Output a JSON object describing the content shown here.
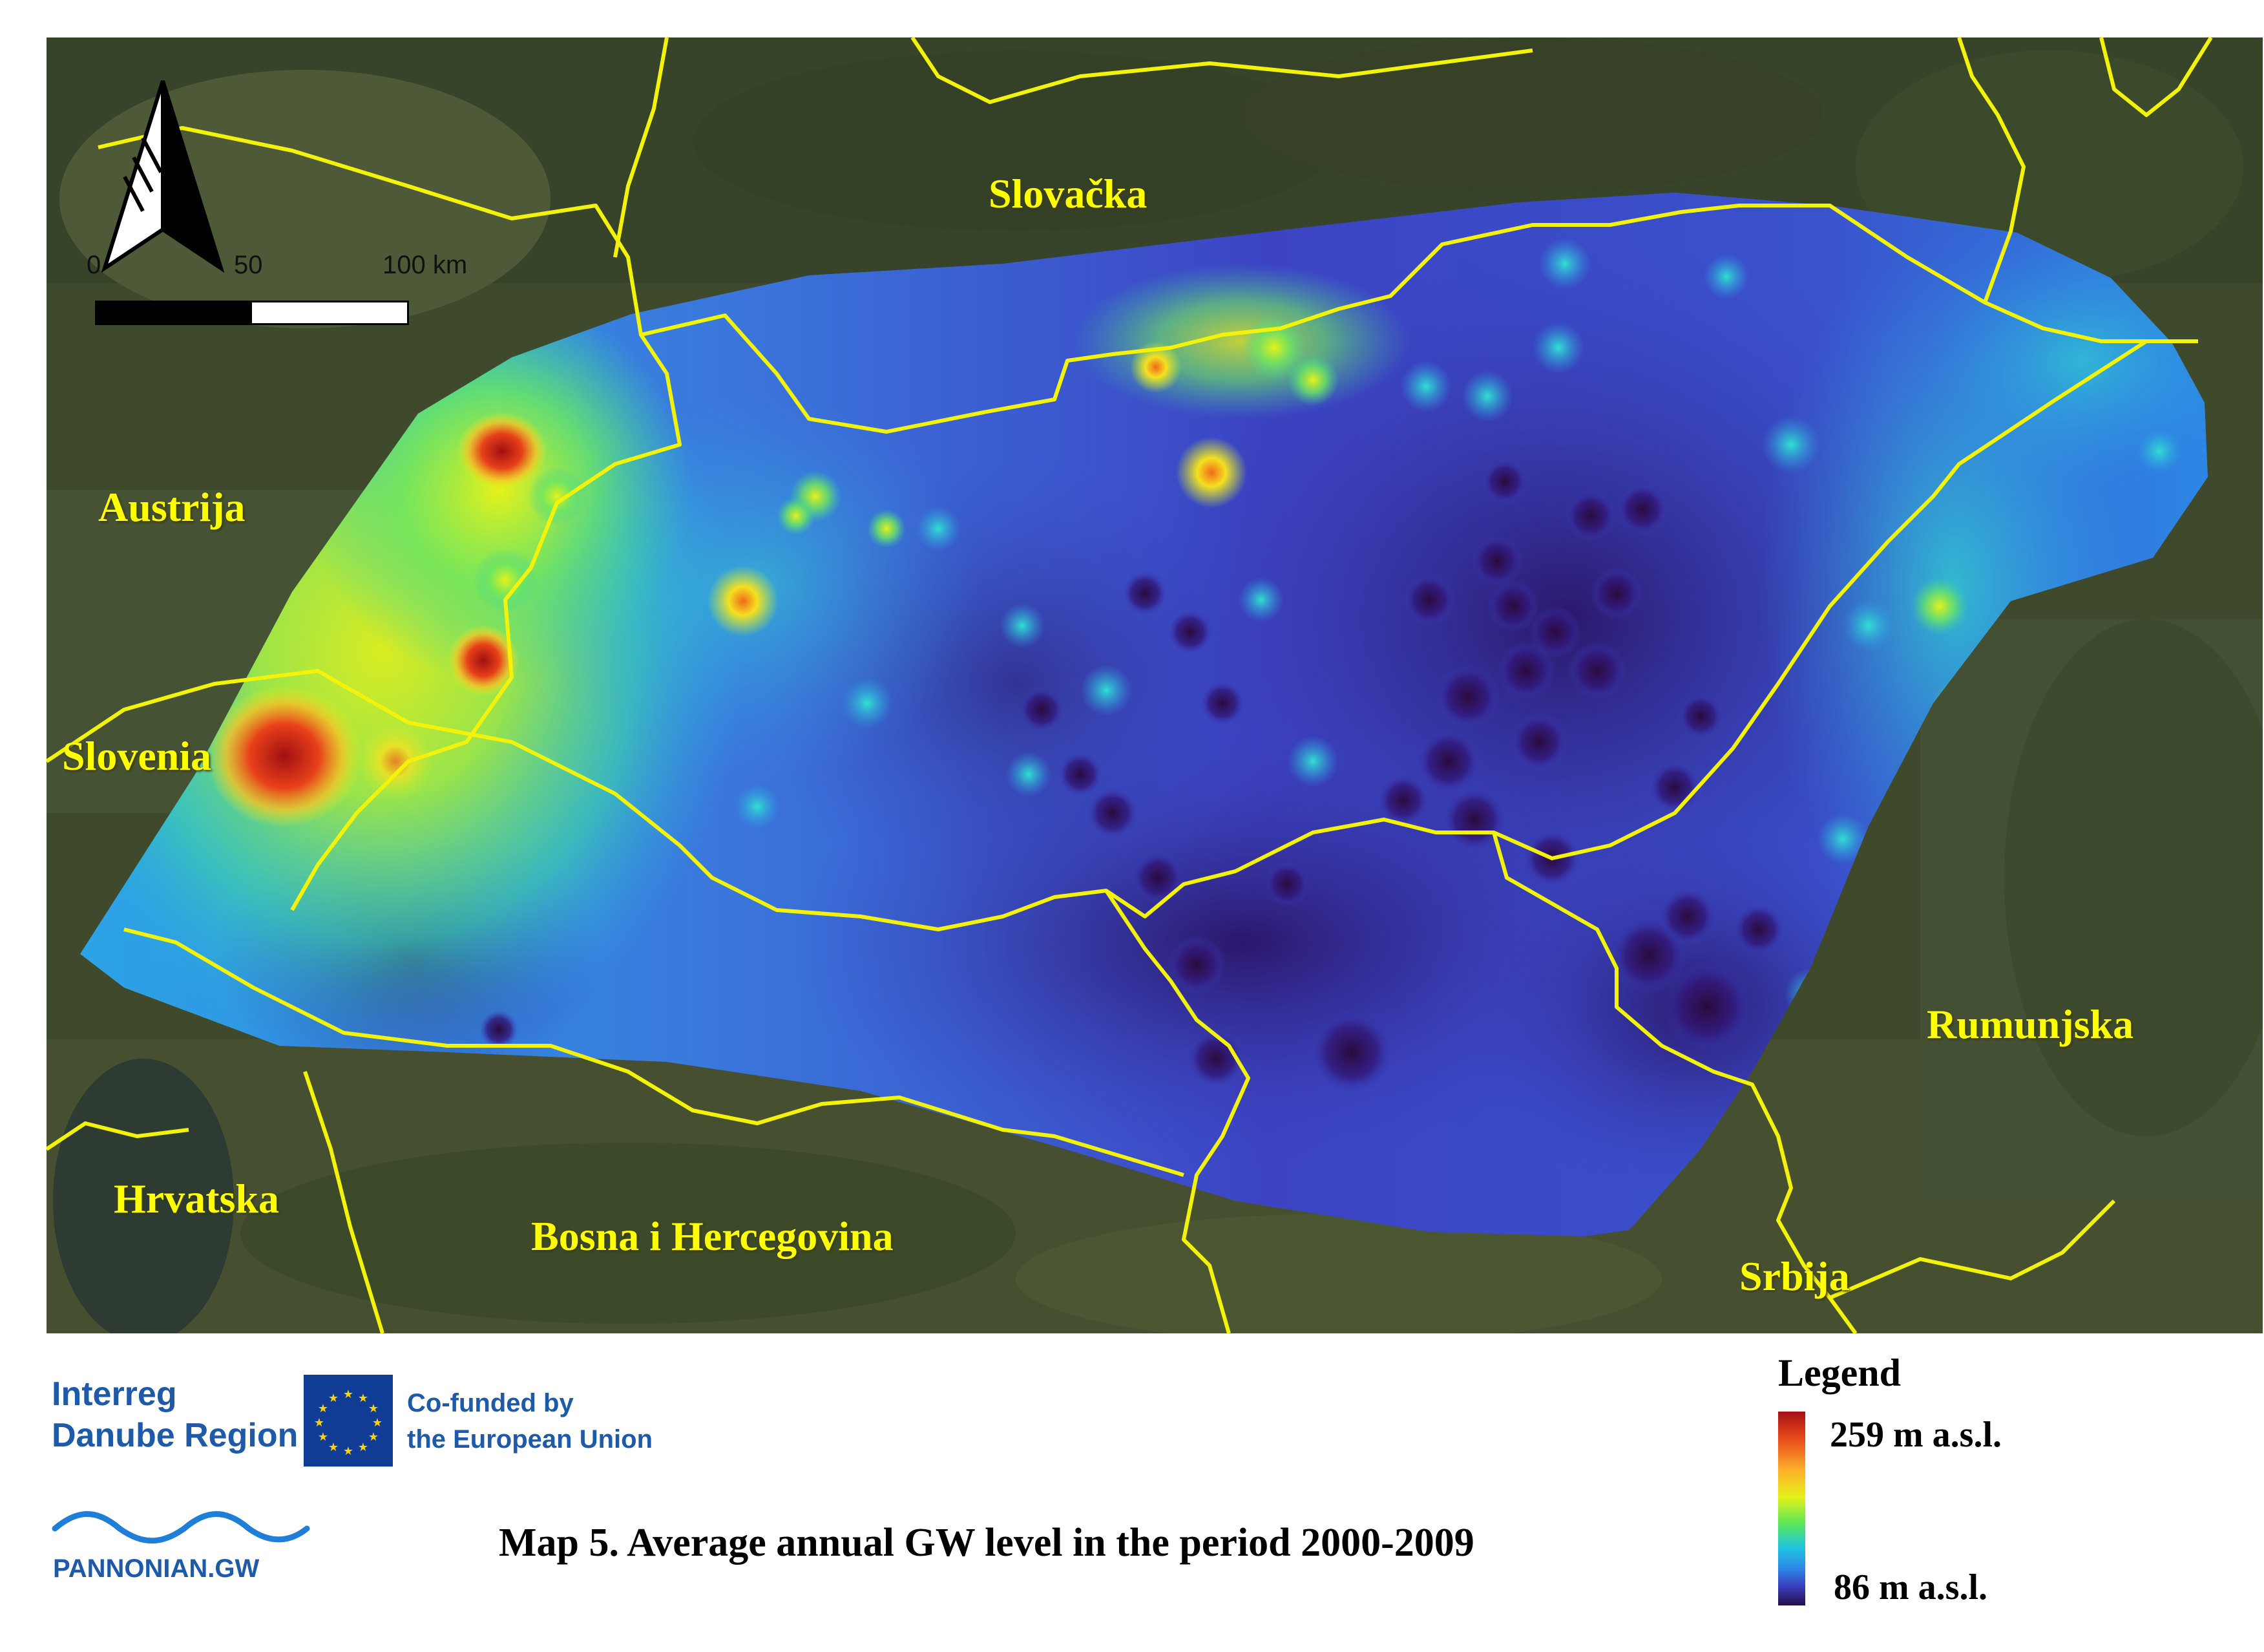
{
  "map": {
    "country_labels": {
      "slovacka": "Slovačka",
      "austrija": "Austrija",
      "slovenia": "Slovenia",
      "hrvatska": "Hrvatska",
      "bosna": "Bosna i Hercegovina",
      "srbija": "Srbija",
      "rumunjska": "Rumunjska"
    },
    "scale": {
      "tick_0": "0",
      "tick_50": "50",
      "tick_100": "100 km"
    },
    "north_arrow_icon": "north-arrow-icon"
  },
  "footer": {
    "interreg_line1": "Interreg",
    "interreg_line2": "Danube Region",
    "eu_line1": "Co-funded by",
    "eu_line2": "the European Union",
    "pannonian": "PANNONIAN.GW",
    "caption": "Map 5. Average annual GW level in the period 2000-2009"
  },
  "legend": {
    "title": "Legend",
    "max_label": "259 m a.s.l.",
    "min_label": "86 m a.s.l.",
    "max_value": 259,
    "min_value": 86,
    "colors": [
      "#a50f15",
      "#fdae2a",
      "#e6f219",
      "#58e65a",
      "#20c6e0",
      "#3a3fc0",
      "#26104a"
    ]
  }
}
